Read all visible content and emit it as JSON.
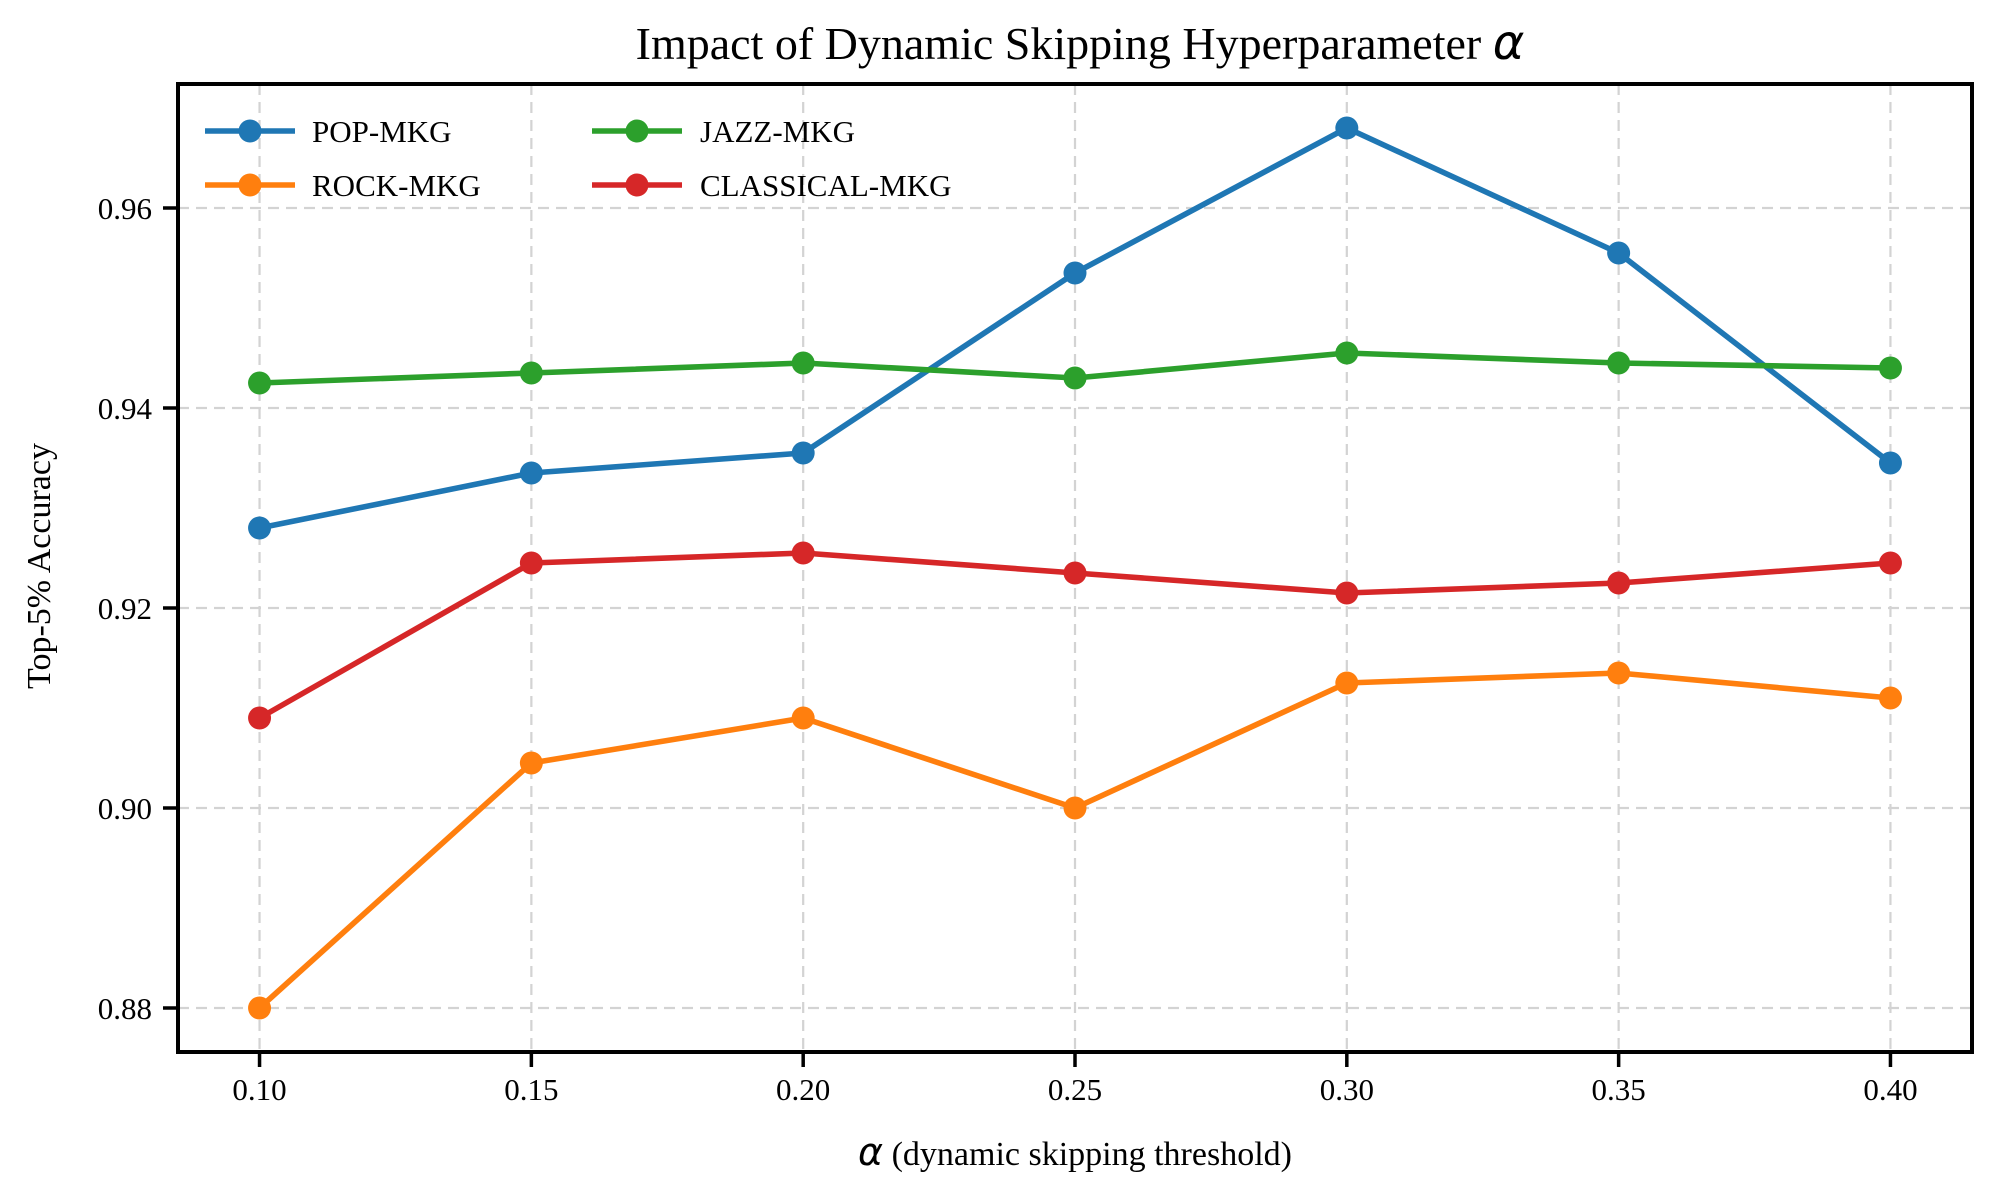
{
  "chart_data": {
    "type": "line",
    "title": "Impact of Dynamic Skipping Hyperparameter α",
    "xlabel": "α (dynamic skipping threshold)",
    "ylabel": "Top-5% Accuracy",
    "x": [
      0.1,
      0.15,
      0.2,
      0.25,
      0.3,
      0.35,
      0.4
    ],
    "series": [
      {
        "name": "POP-MKG",
        "color": "#1f77b4",
        "values": [
          0.928,
          0.9335,
          0.9355,
          0.9535,
          0.968,
          0.9555,
          0.9345
        ]
      },
      {
        "name": "ROCK-MKG",
        "color": "#ff7f0e",
        "values": [
          0.88,
          0.9045,
          0.909,
          0.9,
          0.9125,
          0.9135,
          0.911
        ]
      },
      {
        "name": "JAZZ-MKG",
        "color": "#2ca02c",
        "values": [
          0.9425,
          0.9435,
          0.9445,
          0.943,
          0.9455,
          0.9445,
          0.944
        ]
      },
      {
        "name": "CLASSICAL-MKG",
        "color": "#d62728",
        "values": [
          0.909,
          0.9245,
          0.9255,
          0.9235,
          0.9215,
          0.9225,
          0.9245
        ]
      }
    ],
    "xticks": {
      "values": [
        0.1,
        0.15,
        0.2,
        0.25,
        0.3,
        0.35,
        0.4
      ],
      "labels": [
        "0.10",
        "0.15",
        "0.20",
        "0.25",
        "0.30",
        "0.35",
        "0.40"
      ]
    },
    "yticks": {
      "values": [
        0.88,
        0.9,
        0.92,
        0.94,
        0.96
      ],
      "labels": [
        "0.88",
        "0.90",
        "0.92",
        "0.94",
        "0.96"
      ]
    },
    "xlim": [
      0.085,
      0.415
    ],
    "ylim": [
      0.8756,
      0.9724
    ],
    "grid": {
      "visible": true,
      "style": "dashed",
      "color": "#d3d3d3"
    },
    "legend": {
      "position": "upper left",
      "columns": 2,
      "column1": [
        "POP-MKG",
        "ROCK-MKG"
      ],
      "column2": [
        "JAZZ-MKG",
        "CLASSICAL-MKG"
      ]
    },
    "marker": "circle",
    "background_color": "#ffffff",
    "axis_color": "#000000"
  }
}
